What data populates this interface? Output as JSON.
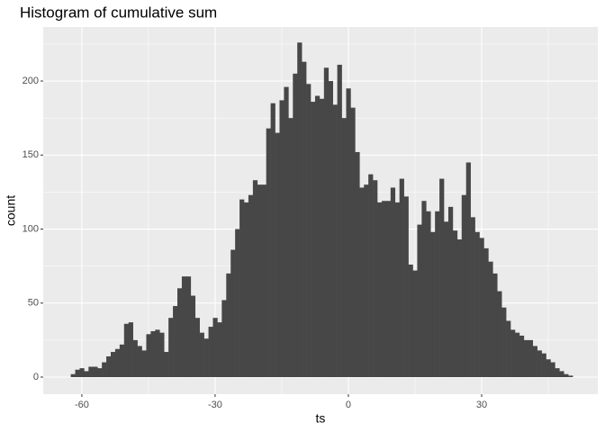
{
  "chart_data": {
    "type": "histogram",
    "title": "Histogram of cumulative sum",
    "x_label": "ts",
    "y_label": "count",
    "bins": [
      -62.5,
      -61.5,
      -60.5,
      -59.5,
      -58.5,
      -57.5,
      -56.5,
      -55.5,
      -54.5,
      -53.5,
      -52.5,
      -51.5,
      -50.5,
      -49.5,
      -48.5,
      -47.5,
      -46.5,
      -45.5,
      -44.5,
      -43.5,
      -42.5,
      -41.5,
      -40.5,
      -39.5,
      -38.5,
      -37.5,
      -36.5,
      -35.5,
      -34.5,
      -33.5,
      -32.5,
      -31.5,
      -30.5,
      -29.5,
      -28.5,
      -27.5,
      -26.5,
      -25.5,
      -24.5,
      -23.5,
      -22.5,
      -21.5,
      -20.5,
      -19.5,
      -18.5,
      -17.5,
      -16.5,
      -15.5,
      -14.5,
      -13.5,
      -12.5,
      -11.5,
      -10.5,
      -9.5,
      -8.5,
      -7.5,
      -6.5,
      -5.5,
      -4.5,
      -3.5,
      -2.5,
      -1.5,
      -0.5,
      0.5,
      1.5,
      2.5,
      3.5,
      4.5,
      5.5,
      6.5,
      7.5,
      8.5,
      9.5,
      10.5,
      11.5,
      12.5,
      13.5,
      14.5,
      15.5,
      16.5,
      17.5,
      18.5,
      19.5,
      20.5,
      21.5,
      22.5,
      23.5,
      24.5,
      25.5,
      26.5,
      27.5,
      28.5,
      29.5,
      30.5,
      31.5,
      32.5,
      33.5,
      34.5,
      35.5,
      36.5,
      37.5,
      38.5,
      39.5,
      40.5,
      41.5,
      42.5,
      43.5,
      44.5,
      45.5,
      46.5,
      47.5,
      48.5,
      49.5,
      50.5
    ],
    "values": [
      2,
      5,
      6,
      4,
      7,
      7,
      6,
      10,
      14,
      17,
      19,
      22,
      36,
      37,
      25,
      21,
      18,
      29,
      31,
      32,
      30,
      17,
      40,
      48,
      60,
      68,
      68,
      55,
      40,
      30,
      26,
      34,
      40,
      37,
      52,
      70,
      86,
      100,
      120,
      118,
      123,
      133,
      130,
      130,
      168,
      185,
      165,
      187,
      196,
      175,
      205,
      226,
      213,
      198,
      186,
      190,
      188,
      209,
      200,
      184,
      211,
      175,
      195,
      182,
      152,
      128,
      130,
      137,
      133,
      118,
      119,
      119,
      128,
      118,
      134,
      122,
      76,
      72,
      103,
      119,
      112,
      98,
      112,
      134,
      105,
      115,
      99,
      93,
      123,
      145,
      108,
      98,
      94,
      87,
      78,
      70,
      58,
      47,
      38,
      32,
      30,
      28,
      25,
      25,
      21,
      18,
      16,
      12,
      10,
      6,
      4,
      2,
      1
    ],
    "color": "#474747",
    "panel_color": "#ebebeb",
    "xlim": [
      -68.7,
      56.15
    ],
    "ylim": [
      -11.55,
      236.5
    ],
    "xticks": [
      -60,
      -30,
      0,
      30
    ],
    "yticks": [
      0,
      50,
      100,
      150,
      200
    ],
    "grid": true
  }
}
